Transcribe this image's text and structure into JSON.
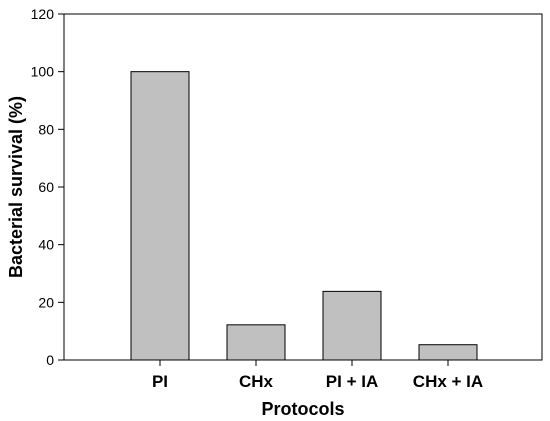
{
  "chart_data": {
    "type": "bar",
    "title": "",
    "xlabel": "Protocols",
    "ylabel": "Bacterial survival (%)",
    "categories": [
      "PI",
      "CHx",
      "PI + IA",
      "CHx + IA"
    ],
    "values": [
      100,
      12.2,
      23.8,
      5.3
    ],
    "ylim": [
      0,
      120
    ],
    "yticks": [
      "0",
      "20",
      "40",
      "60",
      "80",
      "100",
      "120"
    ],
    "grid": false,
    "bar_color": "#c0c0c0",
    "bar_edge_color": "#000000"
  }
}
